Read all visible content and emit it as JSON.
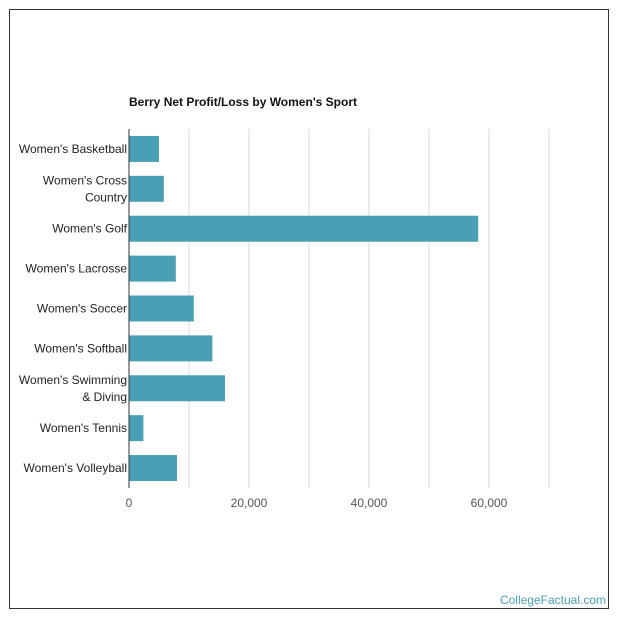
{
  "chart_data": {
    "type": "bar",
    "orientation": "horizontal",
    "title": "Berry Net Profit/Loss by Women's Sport",
    "categories": [
      [
        "Women's Basketball"
      ],
      [
        "Women's Cross",
        "Country"
      ],
      [
        "Women's Golf"
      ],
      [
        "Women's Lacrosse"
      ],
      [
        "Women's Soccer"
      ],
      [
        "Women's Softball"
      ],
      [
        "Women's Swimming",
        "& Diving"
      ],
      [
        "Women's Tennis"
      ],
      [
        "Women's Volleyball"
      ]
    ],
    "values": [
      5000,
      5800,
      58200,
      7800,
      10800,
      13900,
      16000,
      2400,
      8000
    ],
    "xlim": [
      0,
      80000
    ],
    "xticks": [
      0,
      20000,
      40000,
      60000
    ],
    "xtick_labels": [
      "0",
      "20,000",
      "40,000",
      "60,000"
    ],
    "bar_color": "#4a9fb5",
    "grid": true
  },
  "watermark": "CollegeFactual.com"
}
